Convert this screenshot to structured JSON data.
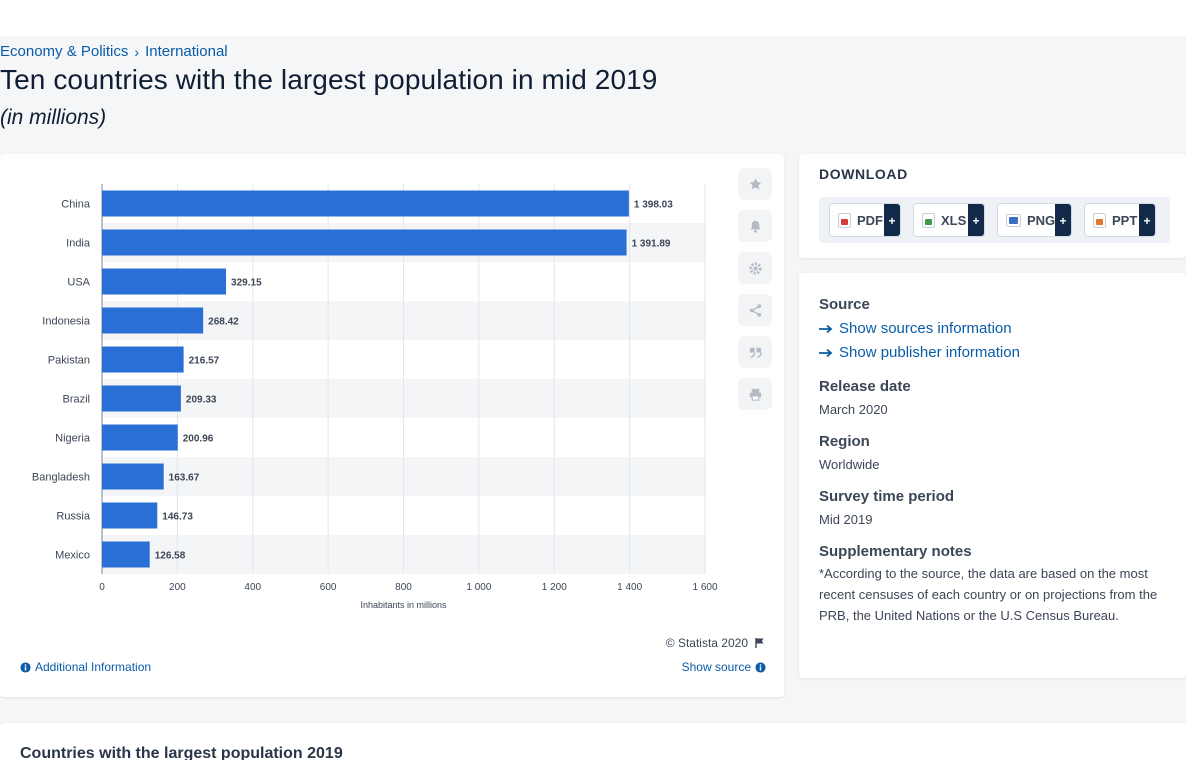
{
  "breadcrumb": {
    "items": [
      "Economy & Politics",
      "International"
    ],
    "separator": "›"
  },
  "title": "Ten countries with the largest population in mid 2019",
  "subtitle": "(in millions)",
  "chart_data": {
    "type": "bar",
    "orientation": "horizontal",
    "categories": [
      "China",
      "India",
      "USA",
      "Indonesia",
      "Pakistan",
      "Brazil",
      "Nigeria",
      "Bangladesh",
      "Russia",
      "Mexico"
    ],
    "values": [
      1398.03,
      1391.89,
      329.15,
      268.42,
      216.57,
      209.33,
      200.96,
      163.67,
      146.73,
      126.58
    ],
    "value_labels": [
      "1 398.03",
      "1 391.89",
      "329.15",
      "268.42",
      "216.57",
      "209.33",
      "200.96",
      "163.67",
      "146.73",
      "126.58"
    ],
    "x_ticks": [
      0,
      200,
      400,
      600,
      800,
      1000,
      1200,
      1400,
      1600
    ],
    "x_tick_labels": [
      "0",
      "200",
      "400",
      "600",
      "800",
      "1 000",
      "1 200",
      "1 400",
      "1 600"
    ],
    "xlim": [
      0,
      1600
    ],
    "xlabel": "Inhabitants in millions",
    "grid": true,
    "bar_color": "#2a6fd6"
  },
  "chart_footer": {
    "copyright": "© Statista 2020",
    "additional": "Additional Information",
    "show_source": "Show source"
  },
  "side_tools": [
    "star-icon",
    "bell-icon",
    "gear-icon",
    "share-icon",
    "quote-icon",
    "print-icon"
  ],
  "download": {
    "title": "DOWNLOAD",
    "buttons": [
      {
        "label": "PDF",
        "plus": "+",
        "color": "#d93a3a"
      },
      {
        "label": "XLS",
        "plus": "+",
        "color": "#3c9a4a"
      },
      {
        "label": "PNG",
        "plus": "+",
        "color": "#3a6fc4"
      },
      {
        "label": "PPT",
        "plus": "+",
        "color": "#e07a2a"
      }
    ]
  },
  "info": {
    "source_label": "Source",
    "show_sources": "Show sources information",
    "show_publisher": "Show publisher information",
    "release_label": "Release date",
    "release_value": "March 2020",
    "region_label": "Region",
    "region_value": "Worldwide",
    "period_label": "Survey time period",
    "period_value": "Mid 2019",
    "notes_label": "Supplementary notes",
    "notes_value": "*According to the source, the data are based on the most recent censuses of each country or on projections from the PRB, the United Nations or the U.S Census Bureau."
  },
  "bottom": {
    "title": "Countries with the largest population 2019"
  }
}
